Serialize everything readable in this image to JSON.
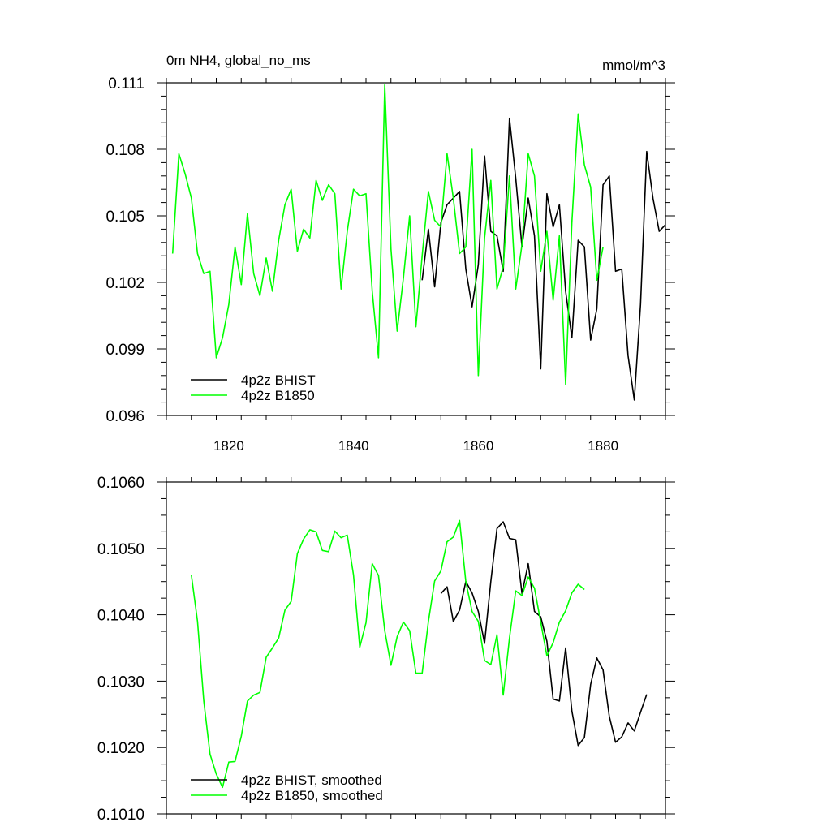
{
  "chart_data": [
    {
      "type": "line",
      "title": "0m NH4, global_no_ms",
      "units": "mmol/m^3",
      "xlim": [
        1810,
        1890
      ],
      "ylim": [
        0.096,
        0.111
      ],
      "x_ticks": [
        1820,
        1840,
        1860,
        1880
      ],
      "x_tick_labels": [
        "1820",
        "1840",
        "1860",
        "1880"
      ],
      "y_ticks": [
        0.096,
        0.099,
        0.102,
        0.105,
        0.108,
        0.111
      ],
      "y_tick_labels": [
        "0.096",
        "0.099",
        "0.102",
        "0.105",
        "0.108",
        "0.111"
      ],
      "legend_position": "bottom-left",
      "series": [
        {
          "name": "4p2z BHIST",
          "color": "#000000",
          "x": [
            1851,
            1852,
            1853,
            1854,
            1855,
            1856,
            1857,
            1858,
            1859,
            1860,
            1861,
            1862,
            1863,
            1864,
            1865,
            1866,
            1867,
            1868,
            1869,
            1870,
            1871,
            1872,
            1873,
            1874,
            1875,
            1876,
            1877,
            1878,
            1879,
            1880,
            1881,
            1882,
            1883,
            1884,
            1885,
            1886,
            1887,
            1888,
            1889,
            1890
          ],
          "y": [
            0.1021,
            0.1044,
            0.1018,
            0.1047,
            0.1055,
            0.1058,
            0.1061,
            0.1026,
            0.1009,
            0.1028,
            0.1077,
            0.1043,
            0.1041,
            0.1025,
            0.1094,
            0.1067,
            0.1036,
            0.1058,
            0.1041,
            0.0981,
            0.106,
            0.1045,
            0.1055,
            0.1016,
            0.0995,
            0.1039,
            0.1036,
            0.0994,
            0.1008,
            0.1064,
            0.1068,
            0.1025,
            0.1026,
            0.0987,
            0.0967,
            0.101,
            0.1079,
            0.1058,
            0.1043,
            0.1046
          ]
        },
        {
          "name": "4p2z B1850",
          "color": "#00ff00",
          "x": [
            1811,
            1812,
            1813,
            1814,
            1815,
            1816,
            1817,
            1818,
            1819,
            1820,
            1821,
            1822,
            1823,
            1824,
            1825,
            1826,
            1827,
            1828,
            1829,
            1830,
            1831,
            1832,
            1833,
            1834,
            1835,
            1836,
            1837,
            1838,
            1839,
            1840,
            1841,
            1842,
            1843,
            1844,
            1845,
            1846,
            1847,
            1848,
            1849,
            1850,
            1851,
            1852,
            1853,
            1854,
            1855,
            1856,
            1857,
            1858,
            1859,
            1860,
            1861,
            1862,
            1863,
            1864,
            1865,
            1866,
            1867,
            1868,
            1869,
            1870,
            1871,
            1872,
            1873,
            1874,
            1875,
            1876,
            1877,
            1878,
            1879,
            1880
          ],
          "y": [
            0.1033,
            0.1078,
            0.1069,
            0.1058,
            0.1033,
            0.1024,
            0.1025,
            0.0986,
            0.0995,
            0.101,
            0.1036,
            0.1019,
            0.1051,
            0.1024,
            0.1014,
            0.1031,
            0.1016,
            0.1039,
            0.1055,
            0.1062,
            0.1034,
            0.1044,
            0.104,
            0.1066,
            0.1057,
            0.1064,
            0.106,
            0.1017,
            0.1043,
            0.1062,
            0.1059,
            0.106,
            0.1016,
            0.0986,
            0.1109,
            0.1035,
            0.0998,
            0.1022,
            0.105,
            0.1,
            0.1032,
            0.1061,
            0.1048,
            0.1045,
            0.1078,
            0.1058,
            0.1033,
            0.1036,
            0.108,
            0.0978,
            0.104,
            0.1066,
            0.1017,
            0.1027,
            0.1068,
            0.1017,
            0.1037,
            0.1078,
            0.1068,
            0.1025,
            0.1043,
            0.1012,
            0.1041,
            0.0974,
            0.1047,
            0.1096,
            0.1073,
            0.1063,
            0.1021,
            0.1036
          ]
        }
      ]
    },
    {
      "type": "line",
      "xlim": [
        1810,
        1890
      ],
      "ylim": [
        0.101,
        0.106
      ],
      "x_ticks": [
        1820,
        1840,
        1860,
        1880
      ],
      "x_tick_labels": [],
      "y_ticks": [
        0.101,
        0.102,
        0.103,
        0.104,
        0.105,
        0.106
      ],
      "y_tick_labels": [
        "0.1010",
        "0.1020",
        "0.1030",
        "0.1040",
        "0.1050",
        "0.1060"
      ],
      "legend_position": "bottom-left",
      "series": [
        {
          "name": "4p2z BHIST, smoothed",
          "color": "#000000",
          "x": [
            1854,
            1855,
            1856,
            1857,
            1858,
            1859,
            1860,
            1861,
            1862,
            1863,
            1864,
            1865,
            1866,
            1867,
            1868,
            1869,
            1870,
            1871,
            1872,
            1873,
            1874,
            1875,
            1876,
            1877,
            1878,
            1879,
            1880,
            1881,
            1882,
            1883,
            1884,
            1885,
            1886,
            1887
          ],
          "y": [
            0.10432,
            0.10442,
            0.1039,
            0.10407,
            0.1045,
            0.10433,
            0.10405,
            0.10357,
            0.1045,
            0.1053,
            0.1054,
            0.10515,
            0.10513,
            0.10432,
            0.10477,
            0.10405,
            0.10397,
            0.1036,
            0.10273,
            0.1027,
            0.1035,
            0.10255,
            0.10203,
            0.10215,
            0.10295,
            0.10335,
            0.10317,
            0.10247,
            0.10208,
            0.10216,
            0.10237,
            0.10225,
            0.10253,
            0.1028
          ]
        },
        {
          "name": "4p2z B1850, smoothed",
          "color": "#00ff00",
          "x": [
            1814,
            1815,
            1816,
            1817,
            1818,
            1819,
            1820,
            1821,
            1822,
            1823,
            1824,
            1825,
            1826,
            1827,
            1828,
            1829,
            1830,
            1831,
            1832,
            1833,
            1834,
            1835,
            1836,
            1837,
            1838,
            1839,
            1840,
            1841,
            1842,
            1843,
            1844,
            1845,
            1846,
            1847,
            1848,
            1849,
            1850,
            1851,
            1852,
            1853,
            1854,
            1855,
            1856,
            1857,
            1858,
            1859,
            1860,
            1861,
            1862,
            1863,
            1864,
            1865,
            1866,
            1867,
            1868,
            1869,
            1870,
            1871,
            1872,
            1873,
            1874,
            1875,
            1876,
            1877
          ],
          "y": [
            0.1046,
            0.1039,
            0.1027,
            0.1019,
            0.1016,
            0.1014,
            0.10178,
            0.10179,
            0.10217,
            0.1027,
            0.10279,
            0.10283,
            0.10336,
            0.1035,
            0.10365,
            0.10407,
            0.1042,
            0.10492,
            0.10514,
            0.10528,
            0.10525,
            0.10497,
            0.10495,
            0.10526,
            0.10516,
            0.1052,
            0.1046,
            0.10351,
            0.10388,
            0.10477,
            0.10459,
            0.10376,
            0.10324,
            0.10367,
            0.10389,
            0.10376,
            0.10312,
            0.10312,
            0.1039,
            0.10451,
            0.10466,
            0.1051,
            0.10517,
            0.10542,
            0.1045,
            0.10405,
            0.1039,
            0.10331,
            0.10325,
            0.1037,
            0.10279,
            0.10365,
            0.10436,
            0.10429,
            0.10457,
            0.1044,
            0.10389,
            0.10338,
            0.10358,
            0.10389,
            0.10406,
            0.10433,
            0.10446,
            0.10438
          ]
        }
      ]
    }
  ]
}
